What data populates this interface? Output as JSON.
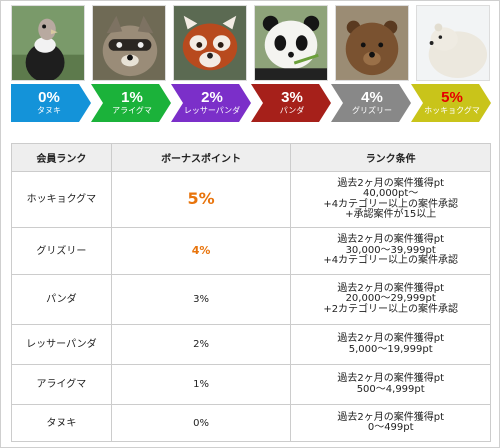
{
  "tiers": [
    {
      "percent": "0%",
      "name": "タヌキ",
      "color": "#1493d9"
    },
    {
      "percent": "1%",
      "name": "アライグマ",
      "color": "#1bb23a"
    },
    {
      "percent": "2%",
      "name": "レッサーパンダ",
      "color": "#7b2fc9"
    },
    {
      "percent": "3%",
      "name": "パンダ",
      "color": "#a6201a"
    },
    {
      "percent": "4%",
      "name": "グリズリー",
      "color": "#888888"
    },
    {
      "percent": "5%",
      "name": "ホッキョクグマ",
      "color": "#c9c41a"
    }
  ],
  "photos": [
    "condor",
    "raccoon",
    "red-panda",
    "panda",
    "grizzly-bear",
    "polar-bear"
  ],
  "table": {
    "headers": [
      "会員ランク",
      "ボーナスポイント",
      "ランク条件"
    ],
    "rows": [
      {
        "rank": "ホッキョクグマ",
        "bonus": "5%",
        "conditions": [
          "過去2ヶ月の案件獲得pt",
          "40,000pt～",
          "+4カテゴリー以上の案件承認",
          "+承認案件が15以上"
        ]
      },
      {
        "rank": "グリズリー",
        "bonus": "4%",
        "conditions": [
          "過去2ヶ月の案件獲得pt",
          "30,000～39,999pt",
          "+4カテゴリー以上の案件承認"
        ]
      },
      {
        "rank": "パンダ",
        "bonus": "3%",
        "conditions": [
          "過去2ヶ月の案件獲得pt",
          "20,000～29,999pt",
          "+2カテゴリー以上の案件承認"
        ]
      },
      {
        "rank": "レッサーパンダ",
        "bonus": "2%",
        "conditions": [
          "過去2ヶ月の案件獲得pt",
          "5,000～19,999pt"
        ]
      },
      {
        "rank": "アライグマ",
        "bonus": "1%",
        "conditions": [
          "過去2ヶ月の案件獲得pt",
          "500～4,999pt"
        ]
      },
      {
        "rank": "タヌキ",
        "bonus": "0%",
        "conditions": [
          "過去2ヶ月の案件獲得pt",
          "0～499pt"
        ]
      }
    ]
  },
  "accent_color": "#e8740c"
}
